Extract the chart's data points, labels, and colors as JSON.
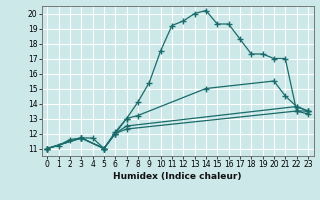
{
  "xlabel": "Humidex (Indice chaleur)",
  "xlim": [
    -0.5,
    23.5
  ],
  "ylim": [
    10.5,
    20.5
  ],
  "yticks": [
    11,
    12,
    13,
    14,
    15,
    16,
    17,
    18,
    19,
    20
  ],
  "xticks": [
    0,
    1,
    2,
    3,
    4,
    5,
    6,
    7,
    8,
    9,
    10,
    11,
    12,
    13,
    14,
    15,
    16,
    17,
    18,
    19,
    20,
    21,
    22,
    23
  ],
  "bg_color": "#cce8e8",
  "grid_color": "#ffffff",
  "line_color": "#1a6b6b",
  "lines": [
    {
      "x": [
        0,
        1,
        2,
        3,
        4,
        5,
        6,
        7,
        8,
        9,
        10,
        11,
        12,
        13,
        14,
        15,
        16,
        17,
        18,
        19,
        20,
        21,
        22,
        23
      ],
      "y": [
        11.0,
        11.2,
        11.6,
        11.7,
        11.7,
        11.0,
        12.1,
        13.0,
        14.1,
        15.4,
        17.5,
        19.2,
        19.5,
        20.0,
        20.2,
        19.3,
        19.3,
        18.3,
        17.3,
        17.3,
        17.0,
        17.0,
        13.5,
        13.5
      ]
    },
    {
      "x": [
        0,
        3,
        5,
        6,
        7,
        8,
        14,
        20,
        21,
        22,
        23
      ],
      "y": [
        11.0,
        11.7,
        11.0,
        12.0,
        13.0,
        13.2,
        15.0,
        15.5,
        14.5,
        13.8,
        13.5
      ]
    },
    {
      "x": [
        0,
        3,
        5,
        6,
        7,
        22,
        23
      ],
      "y": [
        11.0,
        11.7,
        11.0,
        12.0,
        12.5,
        13.8,
        13.5
      ]
    },
    {
      "x": [
        0,
        3,
        5,
        6,
        7,
        22,
        23
      ],
      "y": [
        11.0,
        11.7,
        11.0,
        12.0,
        12.3,
        13.5,
        13.3
      ]
    }
  ]
}
